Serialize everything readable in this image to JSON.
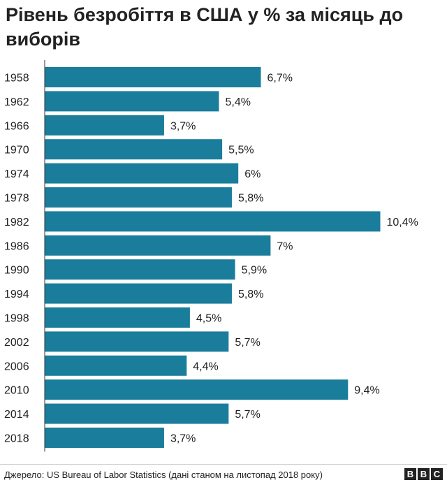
{
  "title": "Рівень безробіття в США у % за місяць до виборів",
  "source": "Джерело: US Bureau of Labor Statistics (дані станом на листопад 2018 року)",
  "logo": [
    "B",
    "B",
    "C"
  ],
  "colors": {
    "bar": "#1a7d9c",
    "axis": "#333333"
  },
  "chart_data": {
    "type": "bar",
    "orientation": "horizontal",
    "title": "Рівень безробіття в США у % за місяць до виборів",
    "categories": [
      "1958",
      "1962",
      "1966",
      "1970",
      "1974",
      "1978",
      "1982",
      "1986",
      "1990",
      "1994",
      "1998",
      "2002",
      "2006",
      "2010",
      "2014",
      "2018"
    ],
    "values": [
      6.7,
      5.4,
      3.7,
      5.5,
      6,
      5.8,
      10.4,
      7,
      5.9,
      5.8,
      4.5,
      5.7,
      4.4,
      9.4,
      5.7,
      3.7
    ],
    "data_labels": [
      "6,7%",
      "5,4%",
      "3,7%",
      "5,5%",
      "6%",
      "5,8%",
      "10,4%",
      "7%",
      "5,9%",
      "5,8%",
      "4,5%",
      "5,7%",
      "4,4%",
      "9,4%",
      "5,7%",
      "3,7%"
    ],
    "unit": "%",
    "grid": false,
    "legend": "none"
  }
}
